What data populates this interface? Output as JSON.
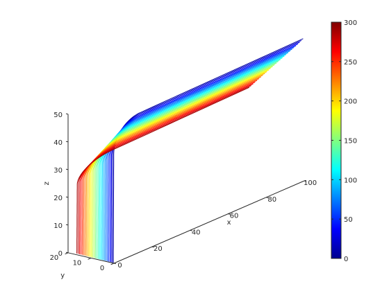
{
  "chart_data": {
    "type": "line",
    "subtype": "3d-contour",
    "title": "",
    "xlabel": "x",
    "ylabel": "y",
    "zlabel": "z",
    "xlim": [
      0,
      100
    ],
    "ylim": [
      0,
      20
    ],
    "zlim": [
      0,
      50
    ],
    "x_ticks": [
      0,
      20,
      40,
      60,
      80,
      100
    ],
    "y_ticks": [
      0,
      10,
      20
    ],
    "z_ticks": [
      0,
      10,
      20,
      30,
      40,
      50
    ],
    "colormap": "jet",
    "colorbar": {
      "min": 0,
      "max": 300,
      "ticks": [
        0,
        50,
        100,
        150,
        200,
        250,
        300
      ]
    },
    "contour_levels": [
      10,
      20,
      30,
      40,
      50,
      60,
      70,
      80,
      90,
      100,
      110,
      120,
      130,
      140,
      150,
      160,
      170,
      180,
      190,
      200,
      210,
      220,
      230,
      240,
      250,
      260,
      270,
      280,
      290
    ],
    "contour_y_positions": [
      0.5,
      1.0,
      1.5,
      2.0,
      2.6,
      3.2,
      3.8,
      4.4,
      5.0,
      5.6,
      6.2,
      6.8,
      7.4,
      8.0,
      8.6,
      9.2,
      9.8,
      10.4,
      11.0,
      11.6,
      12.2,
      12.8,
      13.4,
      14.0,
      14.6,
      15.2,
      15.8,
      16.4,
      17.0
    ],
    "contour_x_positions": [
      6.0,
      6.5,
      7.0,
      7.5,
      8.0,
      8.5,
      9.0,
      9.5,
      10.0,
      10.5,
      11.0,
      11.5,
      12.0,
      12.5,
      13.0,
      13.5,
      14.0,
      14.5,
      15.0,
      15.5,
      16.0,
      16.5,
      17.0,
      17.5,
      18.0,
      18.5,
      19.0,
      19.5,
      20.0
    ],
    "grid": false,
    "legend": "none"
  }
}
